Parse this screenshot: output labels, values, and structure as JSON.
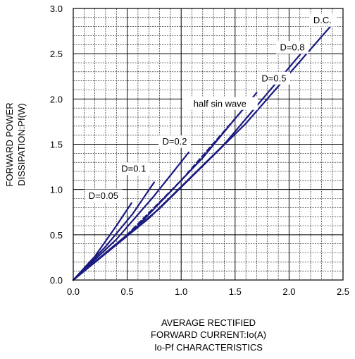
{
  "chart_data": {
    "type": "line",
    "title": "Io-Pf CHARACTERISTICS",
    "xlabel": [
      "AVERAGE RECTIFIED",
      "FORWARD CURRENT:Io(A)"
    ],
    "ylabel": [
      "FORWARD POWER",
      "DISSIPATION:Pf(W)"
    ],
    "xlim": [
      0,
      2.5
    ],
    "ylim": [
      0,
      3.0
    ],
    "x_major_ticks": [
      "0.0",
      "0.5",
      "1.0",
      "1.5",
      "2.0",
      "2.5"
    ],
    "y_major_ticks": [
      "0.0",
      "0.5",
      "1.0",
      "1.5",
      "2.0",
      "2.5",
      "3.0"
    ],
    "grid": "on (minor 0.1 A x 0.1 W, dotted)",
    "colors": {
      "series": "#1a1a80",
      "grid": "#000000"
    },
    "series": [
      {
        "name": "D=0.05",
        "style": "solid",
        "points": [
          [
            0,
            0
          ],
          [
            0.2,
            0.26
          ],
          [
            0.4,
            0.6
          ],
          [
            0.54,
            0.85
          ]
        ]
      },
      {
        "name": "D=0.1",
        "style": "solid",
        "points": [
          [
            0,
            0
          ],
          [
            0.3,
            0.37
          ],
          [
            0.55,
            0.73
          ],
          [
            0.75,
            1.08
          ]
        ]
      },
      {
        "name": "D=0.2",
        "style": "solid",
        "points": [
          [
            0,
            0
          ],
          [
            0.4,
            0.45
          ],
          [
            0.75,
            0.93
          ],
          [
            1.07,
            1.41
          ]
        ]
      },
      {
        "name": "half sin wave",
        "style": "dashed",
        "points": [
          [
            0,
            0
          ],
          [
            0.5,
            0.5
          ],
          [
            1.0,
            1.1
          ],
          [
            1.6,
            1.92
          ]
        ]
      },
      {
        "name": "D=0.5",
        "style": "solid",
        "points": [
          [
            0,
            0
          ],
          [
            0.6,
            0.6
          ],
          [
            1.2,
            1.35
          ],
          [
            1.7,
            2.07
          ]
        ]
      },
      {
        "name": "D=0.8",
        "style": "solid",
        "points": [
          [
            0,
            0
          ],
          [
            0.7,
            0.68
          ],
          [
            1.4,
            1.5
          ],
          [
            2.13,
            2.53
          ]
        ]
      },
      {
        "name": "D.C.",
        "style": "solid",
        "points": [
          [
            0,
            0
          ],
          [
            0.8,
            0.79
          ],
          [
            1.6,
            1.73
          ],
          [
            2.39,
            2.81
          ]
        ]
      }
    ],
    "annotations": [
      {
        "text": "D=0.05",
        "x": 0.28,
        "y": 0.93
      },
      {
        "text": "D=0.1",
        "x": 0.56,
        "y": 1.23
      },
      {
        "text": "D=0.2",
        "x": 0.94,
        "y": 1.53
      },
      {
        "text": "half sin wave",
        "x": 1.36,
        "y": 1.95
      },
      {
        "text": "D=0.5",
        "x": 1.86,
        "y": 2.23
      },
      {
        "text": "D=0.8",
        "x": 2.03,
        "y": 2.57
      },
      {
        "text": "D.C.",
        "x": 2.31,
        "y": 2.87
      }
    ]
  }
}
